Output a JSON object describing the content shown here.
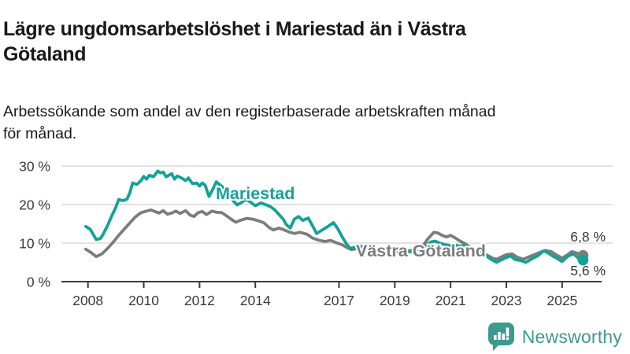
{
  "title": {
    "lines": [
      "Lägre ungdomsarbetslöshet i Mariestad än i Västra",
      "Götaland"
    ],
    "full": "Lägre ungdomsarbetslöshet i Mariestad än i Västra Götaland"
  },
  "subtitle": {
    "lines": [
      "Arbetssökande som andel av den registerbaserade arbetskraften månad",
      "för månad."
    ],
    "full": "Arbetssökande som andel av den registerbaserade arbetskraften månad för månad."
  },
  "footer": {
    "brand": "Newsworthy",
    "logo_icon": "newsworthy-speech-bubble-bar-chart-icon",
    "brand_color": "#3d9a8f"
  },
  "colors": {
    "mariestad": "#14a296",
    "vastra_gotaland": "#7c7c7c",
    "grid": "#d8d8d8",
    "axis": "#3a3a3a",
    "text": "#1a1a1a"
  },
  "chart_data": {
    "type": "line",
    "title": "Lägre ungdomsarbetslöshet i Mariestad än i Västra Götaland",
    "subtitle": "Arbetssökande som andel av den registerbaserade arbetskraften månad för månad.",
    "xlabel": "",
    "ylabel": "",
    "grid": "horizontal",
    "xlim": [
      2007.9,
      2026.3
    ],
    "ylim": [
      0,
      32
    ],
    "x_ticks": [
      2008,
      2010,
      2012,
      2014,
      2017,
      2019,
      2021,
      2023,
      2025
    ],
    "x_tick_labels": [
      "2008",
      "2010",
      "2012",
      "2014",
      "2017",
      "2019",
      "2021",
      "2023",
      "2025"
    ],
    "y_ticks": [
      0,
      10,
      20,
      30
    ],
    "y_tick_labels": [
      "0 %",
      "10 %",
      "20 %",
      "30 %"
    ],
    "legend_position": "inline-labels",
    "series": [
      {
        "name": "Västra Götaland",
        "color": "#7c7c7c",
        "end_label": "6,8 %",
        "end_value": 6.8,
        "points": [
          [
            2007.92,
            8.4
          ],
          [
            2008.1,
            7.6
          ],
          [
            2008.3,
            6.5
          ],
          [
            2008.5,
            7.2
          ],
          [
            2008.7,
            8.6
          ],
          [
            2008.9,
            10.2
          ],
          [
            2009.1,
            12.0
          ],
          [
            2009.3,
            13.6
          ],
          [
            2009.5,
            15.2
          ],
          [
            2009.7,
            16.8
          ],
          [
            2009.9,
            17.9
          ],
          [
            2010.1,
            18.3
          ],
          [
            2010.25,
            18.6
          ],
          [
            2010.4,
            18.2
          ],
          [
            2010.55,
            17.8
          ],
          [
            2010.7,
            18.4
          ],
          [
            2010.85,
            17.5
          ],
          [
            2011.0,
            17.8
          ],
          [
            2011.15,
            18.3
          ],
          [
            2011.3,
            17.7
          ],
          [
            2011.5,
            18.4
          ],
          [
            2011.65,
            17.3
          ],
          [
            2011.8,
            16.9
          ],
          [
            2011.95,
            17.9
          ],
          [
            2012.1,
            18.2
          ],
          [
            2012.25,
            17.4
          ],
          [
            2012.45,
            18.3
          ],
          [
            2012.6,
            18.0
          ],
          [
            2012.8,
            17.9
          ],
          [
            2013.0,
            16.9
          ],
          [
            2013.15,
            16.1
          ],
          [
            2013.3,
            15.4
          ],
          [
            2013.5,
            16.0
          ],
          [
            2013.7,
            16.4
          ],
          [
            2013.9,
            16.2
          ],
          [
            2014.1,
            15.8
          ],
          [
            2014.3,
            15.3
          ],
          [
            2014.5,
            14.0
          ],
          [
            2014.65,
            13.4
          ],
          [
            2014.85,
            13.9
          ],
          [
            2015.0,
            13.5
          ],
          [
            2015.2,
            12.9
          ],
          [
            2015.4,
            12.5
          ],
          [
            2015.6,
            12.8
          ],
          [
            2015.85,
            12.3
          ],
          [
            2016.05,
            11.3
          ],
          [
            2016.25,
            10.8
          ],
          [
            2016.5,
            10.4
          ],
          [
            2016.7,
            10.7
          ],
          [
            2016.9,
            10.1
          ],
          [
            2017.1,
            9.6
          ],
          [
            2017.3,
            8.8
          ],
          [
            2017.45,
            8.3
          ],
          [
            2017.6,
            8.5
          ],
          [
            2017.8,
            8.9
          ],
          [
            2018.0,
            8.6
          ],
          [
            2018.2,
            8.3
          ],
          [
            2018.4,
            8.0
          ],
          [
            2018.6,
            8.3
          ],
          [
            2018.8,
            8.6
          ],
          [
            2019.0,
            8.3
          ],
          [
            2019.2,
            8.0
          ],
          [
            2019.4,
            7.9
          ],
          [
            2019.6,
            8.1
          ],
          [
            2019.8,
            8.5
          ],
          [
            2020.0,
            9.2
          ],
          [
            2020.2,
            11.2
          ],
          [
            2020.4,
            12.8
          ],
          [
            2020.55,
            12.6
          ],
          [
            2020.7,
            12.0
          ],
          [
            2020.85,
            11.6
          ],
          [
            2021.0,
            12.0
          ],
          [
            2021.15,
            11.4
          ],
          [
            2021.3,
            10.7
          ],
          [
            2021.5,
            9.9
          ],
          [
            2021.7,
            8.9
          ],
          [
            2021.9,
            8.1
          ],
          [
            2022.08,
            7.8
          ],
          [
            2022.3,
            6.9
          ],
          [
            2022.5,
            6.1
          ],
          [
            2022.65,
            5.8
          ],
          [
            2022.8,
            6.3
          ],
          [
            2023.0,
            7.0
          ],
          [
            2023.2,
            7.2
          ],
          [
            2023.4,
            6.3
          ],
          [
            2023.6,
            5.8
          ],
          [
            2023.8,
            6.4
          ],
          [
            2024.0,
            7.0
          ],
          [
            2024.2,
            7.6
          ],
          [
            2024.4,
            8.1
          ],
          [
            2024.6,
            7.8
          ],
          [
            2024.8,
            6.9
          ],
          [
            2025.0,
            6.1
          ],
          [
            2025.2,
            7.0
          ],
          [
            2025.35,
            7.8
          ],
          [
            2025.5,
            7.5
          ],
          [
            2025.65,
            7.0
          ],
          [
            2025.75,
            6.8
          ]
        ]
      },
      {
        "name": "Mariestad",
        "color": "#14a296",
        "end_label": "5,6 %",
        "end_value": 5.6,
        "points": [
          [
            2007.92,
            14.3
          ],
          [
            2008.08,
            13.6
          ],
          [
            2008.3,
            10.9
          ],
          [
            2008.45,
            11.2
          ],
          [
            2008.55,
            12.4
          ],
          [
            2008.7,
            14.5
          ],
          [
            2008.85,
            17.0
          ],
          [
            2009.0,
            19.3
          ],
          [
            2009.1,
            21.3
          ],
          [
            2009.25,
            21.0
          ],
          [
            2009.4,
            21.4
          ],
          [
            2009.5,
            23.0
          ],
          [
            2009.6,
            25.6
          ],
          [
            2009.75,
            25.2
          ],
          [
            2009.9,
            26.2
          ],
          [
            2010.0,
            27.3
          ],
          [
            2010.1,
            26.6
          ],
          [
            2010.2,
            27.6
          ],
          [
            2010.35,
            27.2
          ],
          [
            2010.5,
            28.7
          ],
          [
            2010.6,
            28.2
          ],
          [
            2010.7,
            28.4
          ],
          [
            2010.8,
            27.2
          ],
          [
            2010.9,
            27.6
          ],
          [
            2011.0,
            28.0
          ],
          [
            2011.1,
            26.6
          ],
          [
            2011.2,
            27.4
          ],
          [
            2011.35,
            26.9
          ],
          [
            2011.5,
            26.2
          ],
          [
            2011.6,
            26.9
          ],
          [
            2011.75,
            25.4
          ],
          [
            2011.9,
            25.6
          ],
          [
            2012.0,
            24.8
          ],
          [
            2012.1,
            25.6
          ],
          [
            2012.2,
            25.0
          ],
          [
            2012.34,
            22.1
          ],
          [
            2012.5,
            24.3
          ],
          [
            2012.6,
            25.9
          ],
          [
            2012.75,
            25.0
          ],
          [
            2012.9,
            24.2
          ],
          [
            2013.0,
            23.8
          ],
          [
            2013.2,
            21.0
          ],
          [
            2013.35,
            19.9
          ],
          [
            2013.5,
            20.5
          ],
          [
            2013.65,
            21.3
          ],
          [
            2013.8,
            20.8
          ],
          [
            2014.0,
            19.7
          ],
          [
            2014.2,
            20.4
          ],
          [
            2014.4,
            19.9
          ],
          [
            2014.55,
            19.4
          ],
          [
            2014.7,
            18.6
          ],
          [
            2014.85,
            17.4
          ],
          [
            2015.0,
            16.2
          ],
          [
            2015.1,
            14.9
          ],
          [
            2015.25,
            13.9
          ],
          [
            2015.4,
            16.2
          ],
          [
            2015.55,
            16.9
          ],
          [
            2015.7,
            15.9
          ],
          [
            2015.9,
            16.5
          ],
          [
            2016.05,
            14.5
          ],
          [
            2016.2,
            12.5
          ],
          [
            2016.4,
            13.4
          ],
          [
            2016.6,
            14.3
          ],
          [
            2016.8,
            15.3
          ],
          [
            2016.95,
            13.8
          ],
          [
            2017.1,
            11.8
          ],
          [
            2017.25,
            10.0
          ],
          [
            2017.4,
            8.6
          ],
          [
            2017.55,
            8.9
          ],
          [
            2017.7,
            9.4
          ],
          [
            2017.85,
            8.9
          ],
          [
            2018.0,
            8.3
          ],
          [
            2018.2,
            7.9
          ],
          [
            2018.4,
            7.4
          ],
          [
            2018.55,
            7.9
          ],
          [
            2018.7,
            8.6
          ],
          [
            2018.9,
            8.1
          ],
          [
            2019.1,
            7.7
          ],
          [
            2019.3,
            8.0
          ],
          [
            2019.5,
            7.6
          ],
          [
            2019.7,
            8.1
          ],
          [
            2019.9,
            8.6
          ],
          [
            2020.1,
            9.3
          ],
          [
            2020.3,
            10.3
          ],
          [
            2020.45,
            10.5
          ],
          [
            2020.6,
            10.0
          ],
          [
            2020.8,
            9.6
          ],
          [
            2021.0,
            9.3
          ],
          [
            2021.15,
            9.6
          ],
          [
            2021.3,
            9.2
          ],
          [
            2021.5,
            9.4
          ],
          [
            2021.7,
            8.6
          ],
          [
            2021.9,
            7.9
          ],
          [
            2022.08,
            7.7
          ],
          [
            2022.3,
            6.6
          ],
          [
            2022.45,
            5.8
          ],
          [
            2022.65,
            5.0
          ],
          [
            2022.8,
            5.6
          ],
          [
            2022.95,
            6.1
          ],
          [
            2023.15,
            6.7
          ],
          [
            2023.3,
            5.8
          ],
          [
            2023.5,
            5.5
          ],
          [
            2023.7,
            5.0
          ],
          [
            2023.9,
            5.9
          ],
          [
            2024.1,
            6.6
          ],
          [
            2024.35,
            8.0
          ],
          [
            2024.5,
            7.4
          ],
          [
            2024.65,
            6.7
          ],
          [
            2024.85,
            5.9
          ],
          [
            2025.0,
            5.2
          ],
          [
            2025.2,
            6.6
          ],
          [
            2025.4,
            7.2
          ],
          [
            2025.55,
            6.3
          ],
          [
            2025.65,
            5.4
          ],
          [
            2025.75,
            5.6
          ]
        ]
      }
    ],
    "annotations": [
      {
        "text": "Mariestad",
        "series": "Mariestad"
      },
      {
        "text": "Västra Götaland",
        "series": "Västra Götaland"
      },
      {
        "text": "6,8 %",
        "series": "Västra Götaland"
      },
      {
        "text": "5,6 %",
        "series": "Mariestad"
      }
    ]
  }
}
